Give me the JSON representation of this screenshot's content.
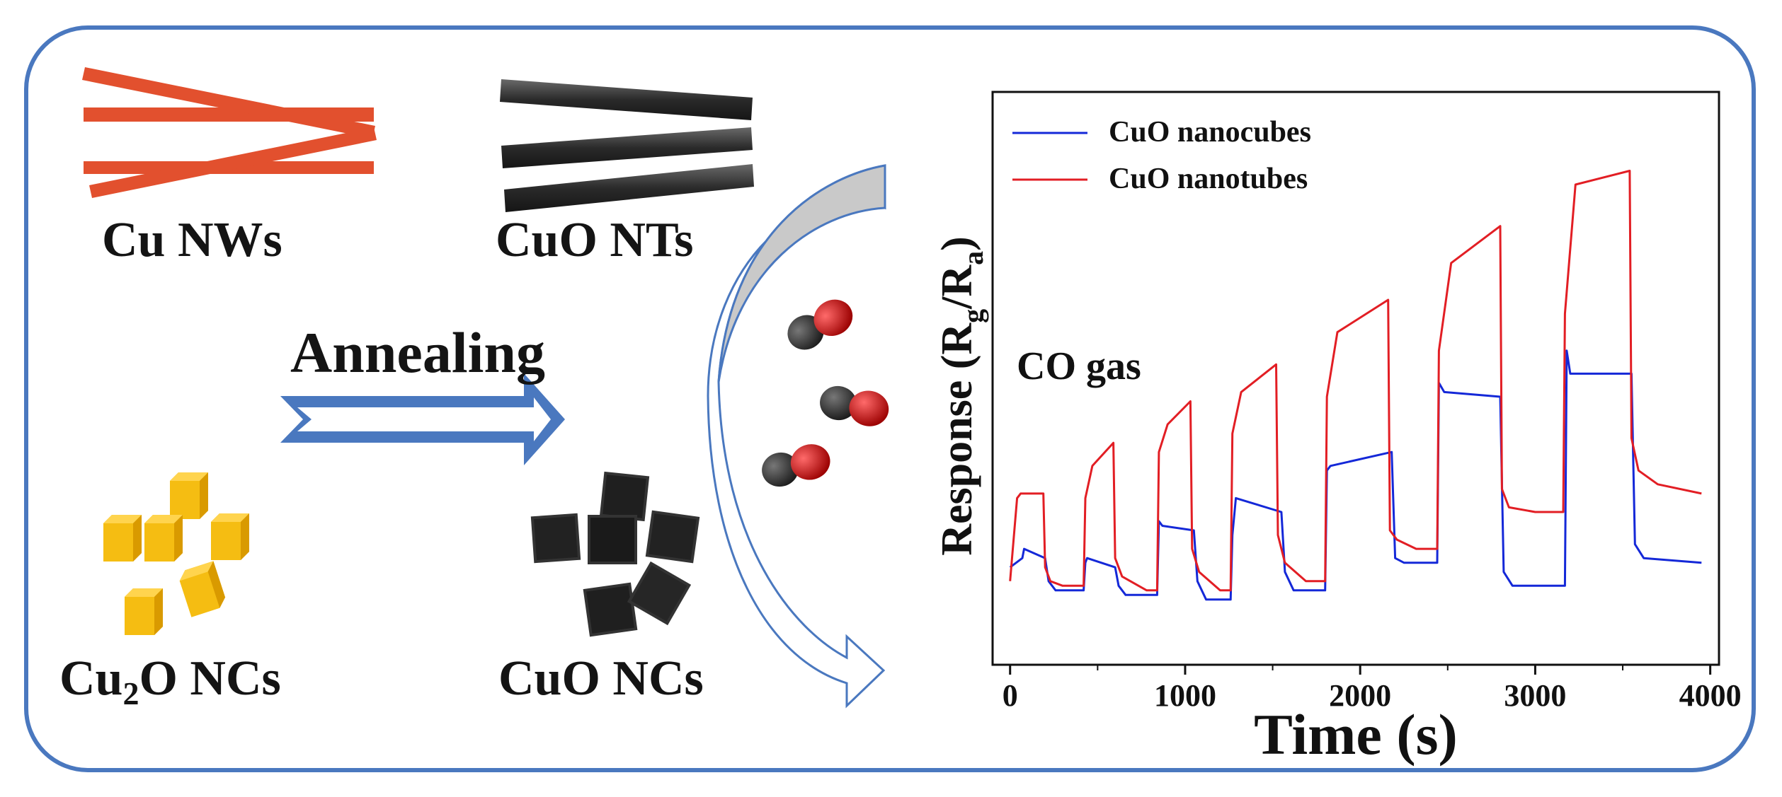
{
  "labels": {
    "cu_nws": "Cu NWs",
    "cuo_nts": "CuO NTs",
    "annealing": "Annealing",
    "cu2o_ncs_prefix": "Cu",
    "cu2o_ncs_sub": "2",
    "cu2o_ncs_suffix": "O NCs",
    "cuo_ncs": "CuO NCs"
  },
  "colors": {
    "frame": "#4a78bf",
    "nanowire": "#e2502e",
    "nanotube": "#2a2a2a",
    "cube": "#f5bd12",
    "arrow": "#4a78bf",
    "molecule_c": "#2b2b2b",
    "molecule_o": "#d71a1a"
  },
  "chart_data": {
    "type": "line",
    "title": "",
    "annotation": "CO gas",
    "xlabel": "Time (s)",
    "ylabel_main": "Response (R",
    "ylabel_sub1": "g",
    "ylabel_mid": "/R",
    "ylabel_sub2": "a",
    "ylabel_end": ")",
    "xlim": [
      -100,
      4050
    ],
    "ylim": [
      0,
      100
    ],
    "xticks": [
      0,
      1000,
      2000,
      3000,
      4000
    ],
    "xtick_labels": [
      "0",
      "1000",
      "2000",
      "3000",
      "4000"
    ],
    "legend_position": "top-left",
    "series": [
      {
        "name": "CuO nanocubes",
        "color": "#1428d8",
        "x": [
          0,
          70,
          80,
          200,
          220,
          260,
          420,
          430,
          440,
          600,
          620,
          660,
          840,
          850,
          870,
          1050,
          1070,
          1120,
          1260,
          1270,
          1290,
          1550,
          1570,
          1620,
          1800,
          1810,
          1830,
          2180,
          2200,
          2250,
          2440,
          2450,
          2480,
          2800,
          2820,
          2870,
          3170,
          3180,
          3200,
          3550,
          3570,
          3620,
          3950
        ],
        "y": [
          15,
          17,
          19,
          17,
          12,
          10,
          10,
          16,
          17,
          15,
          11,
          9,
          9,
          25,
          24,
          23,
          12,
          8,
          8,
          22,
          30,
          27,
          14,
          10,
          10,
          36,
          37,
          40,
          17,
          16,
          16,
          55,
          53,
          52,
          14,
          11,
          11,
          62,
          57,
          57,
          20,
          17,
          16
        ]
      },
      {
        "name": "CuO nanotubes",
        "color": "#e21e24",
        "x": [
          0,
          40,
          60,
          190,
          200,
          230,
          300,
          420,
          430,
          470,
          590,
          600,
          640,
          780,
          840,
          850,
          900,
          1030,
          1040,
          1080,
          1200,
          1260,
          1270,
          1320,
          1520,
          1530,
          1570,
          1690,
          1800,
          1810,
          1870,
          2160,
          2170,
          2210,
          2320,
          2440,
          2450,
          2520,
          2800,
          2810,
          2850,
          3000,
          3160,
          3170,
          3230,
          3540,
          3550,
          3590,
          3700,
          3950
        ],
        "y": [
          12,
          30,
          31,
          31,
          15,
          12,
          11,
          11,
          30,
          37,
          42,
          17,
          13,
          10,
          10,
          40,
          46,
          51,
          19,
          14,
          10,
          10,
          44,
          53,
          59,
          22,
          16,
          12,
          12,
          52,
          66,
          73,
          23,
          21,
          19,
          19,
          62,
          81,
          89,
          32,
          28,
          27,
          27,
          70,
          98,
          101,
          43,
          36,
          33,
          31
        ]
      }
    ]
  }
}
